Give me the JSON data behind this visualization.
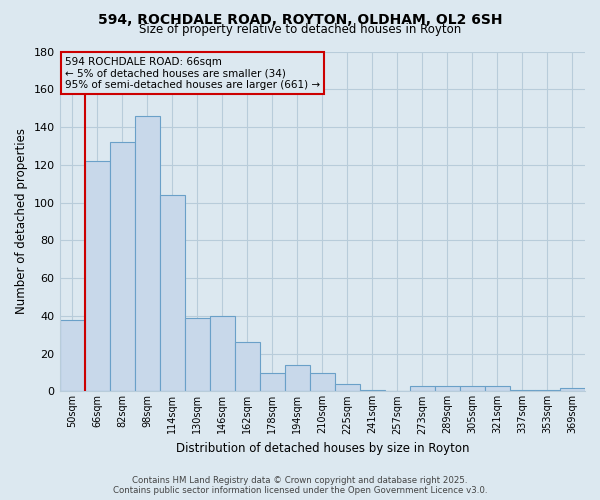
{
  "title_line1": "594, ROCHDALE ROAD, ROYTON, OLDHAM, OL2 6SH",
  "title_line2": "Size of property relative to detached houses in Royton",
  "xlabel": "Distribution of detached houses by size in Royton",
  "ylabel": "Number of detached properties",
  "categories": [
    "50sqm",
    "66sqm",
    "82sqm",
    "98sqm",
    "114sqm",
    "130sqm",
    "146sqm",
    "162sqm",
    "178sqm",
    "194sqm",
    "210sqm",
    "225sqm",
    "241sqm",
    "257sqm",
    "273sqm",
    "289sqm",
    "305sqm",
    "321sqm",
    "337sqm",
    "353sqm",
    "369sqm"
  ],
  "values": [
    38,
    122,
    132,
    146,
    104,
    39,
    40,
    26,
    10,
    14,
    10,
    4,
    1,
    0,
    3,
    3,
    3,
    3,
    1,
    1,
    2
  ],
  "bar_color": "#c8d8ea",
  "bar_edge_color": "#6aa0c8",
  "highlight_bar_index": 1,
  "highlight_line_color": "#cc0000",
  "ylim": [
    0,
    180
  ],
  "yticks": [
    0,
    20,
    40,
    60,
    80,
    100,
    120,
    140,
    160,
    180
  ],
  "annotation_title": "594 ROCHDALE ROAD: 66sqm",
  "annotation_line1": "← 5% of detached houses are smaller (34)",
  "annotation_line2": "95% of semi-detached houses are larger (661) →",
  "annotation_box_edge": "#cc0000",
  "footer_line1": "Contains HM Land Registry data © Crown copyright and database right 2025.",
  "footer_line2": "Contains public sector information licensed under the Open Government Licence v3.0.",
  "background_color": "#dce8f0",
  "grid_color": "#b8ccda"
}
